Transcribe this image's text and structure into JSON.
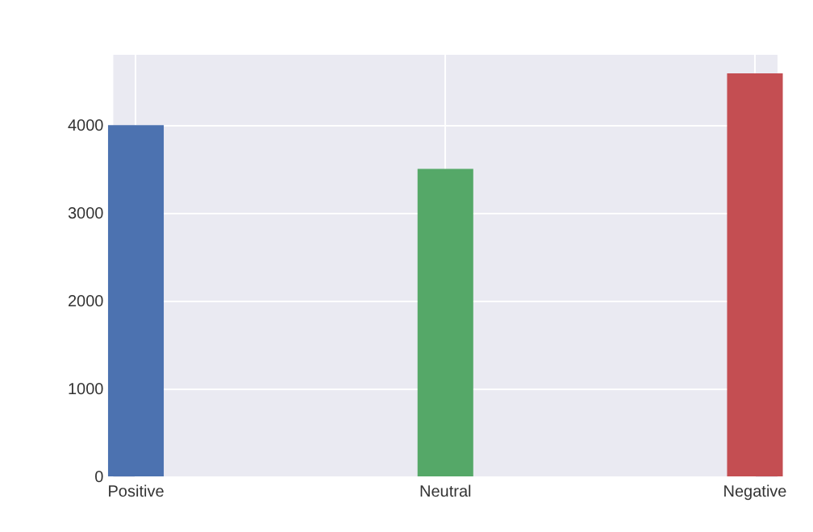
{
  "chart_data": {
    "type": "bar",
    "categories": [
      "Positive",
      "Neutral",
      "Negative"
    ],
    "values": [
      4010,
      3510,
      4600
    ],
    "colors": [
      "#4c72b0",
      "#55a868",
      "#c44e52"
    ],
    "ylim": [
      0,
      4810
    ],
    "yticks": [
      0,
      1000,
      2000,
      3000,
      4000
    ],
    "grid": true
  }
}
